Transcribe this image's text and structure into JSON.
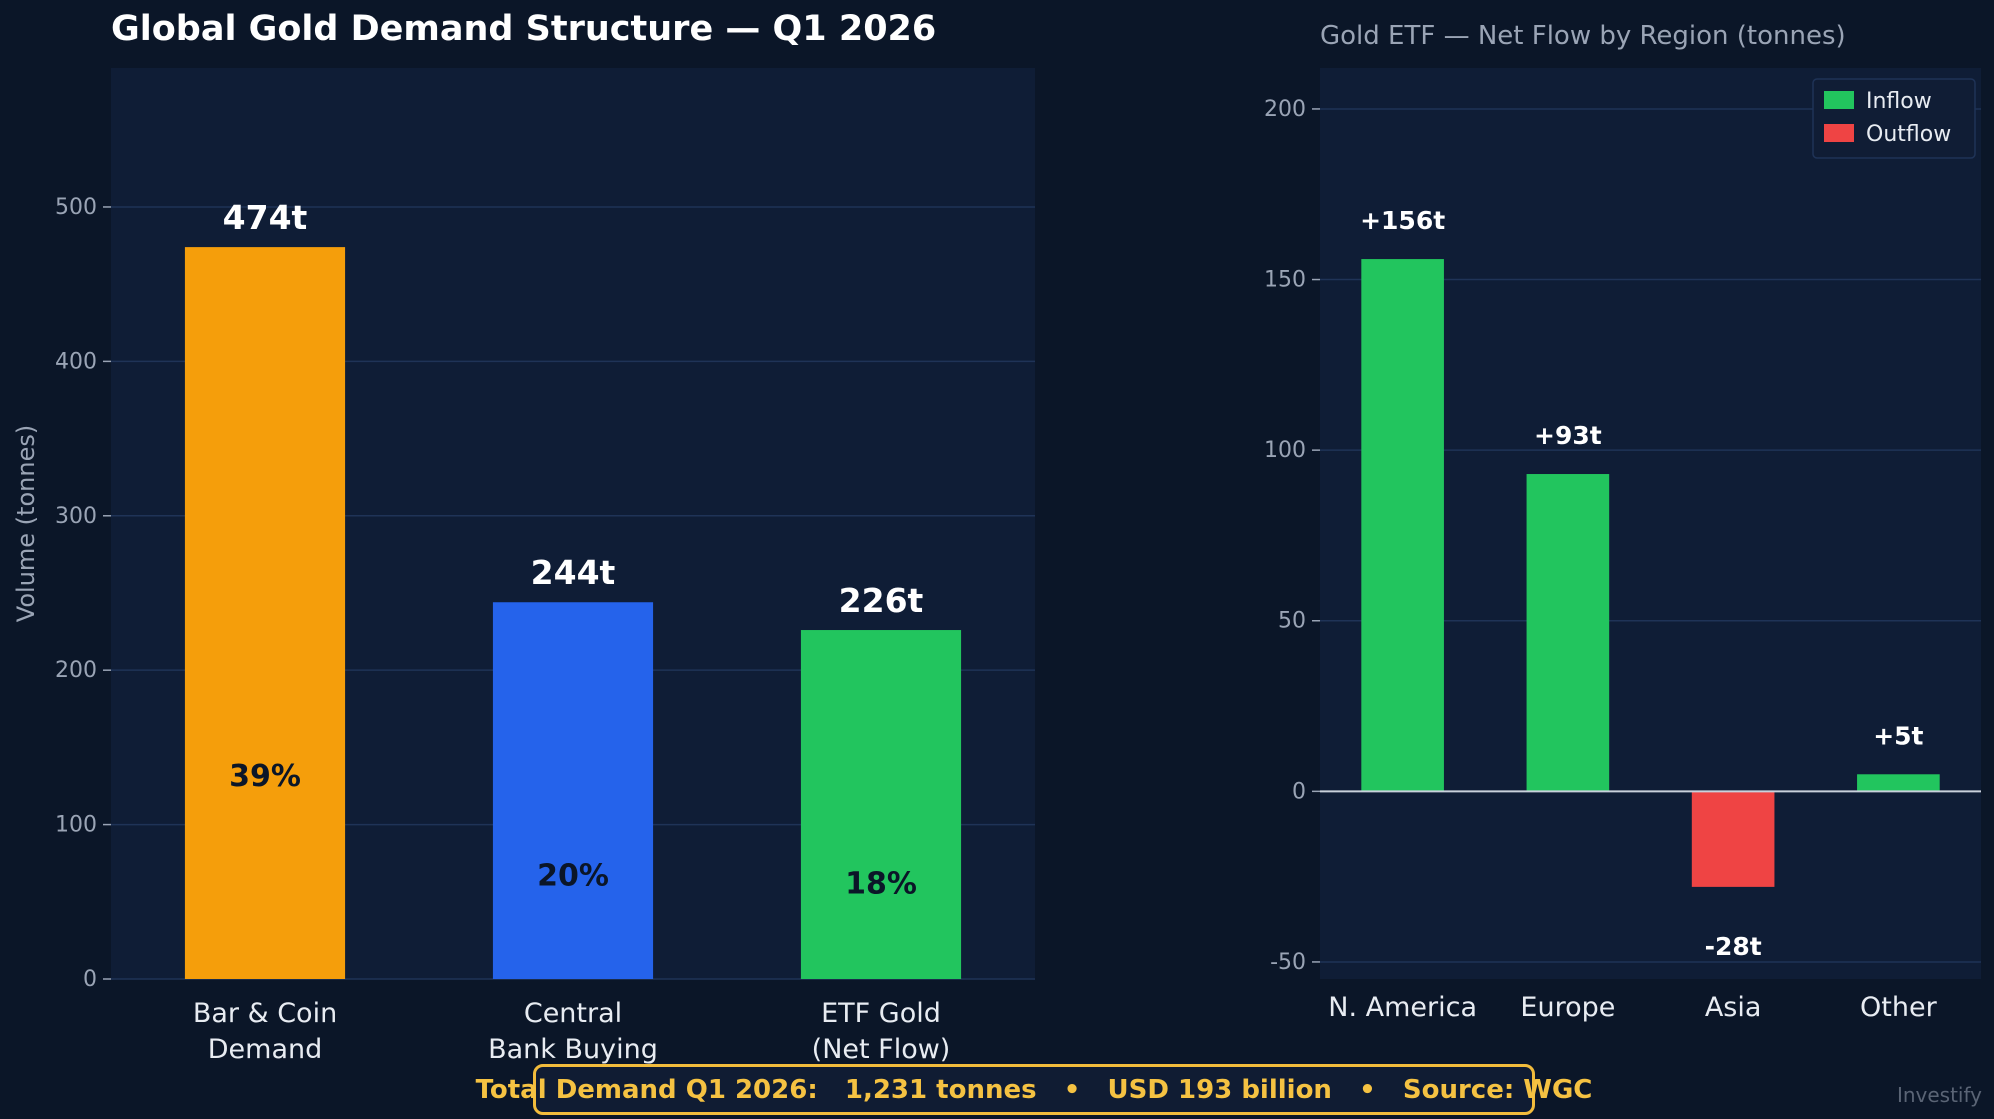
{
  "colors": {
    "background": "#0b1628",
    "panel": "#0f1d36",
    "grid": "#1f3357",
    "tick_text": "#9aa4b5",
    "title_text": "#ffffff",
    "accent_gold": "#f2bc3c"
  },
  "chart_data": [
    {
      "type": "bar",
      "title": "Global Gold Demand Structure — Q1 2026",
      "ylabel": "Volume (tonnes)",
      "xlabel": "",
      "categories": [
        [
          "Bar & Coin",
          "Demand"
        ],
        [
          "Central",
          "Bank Buying"
        ],
        [
          "ETF Gold",
          "(Net Flow)"
        ]
      ],
      "values": [
        474,
        244,
        226
      ],
      "value_labels": [
        "474t",
        "244t",
        "226t"
      ],
      "share_labels": [
        "39%",
        "20%",
        "18%"
      ],
      "colors": [
        "#f59e0b",
        "#2563eb",
        "#22c55e"
      ],
      "ylim": [
        0,
        590
      ],
      "yticks": [
        0,
        100,
        200,
        300,
        400,
        500
      ],
      "grid": true
    },
    {
      "type": "bar",
      "title": "Gold ETF — Net Flow by Region (tonnes)",
      "ylabel": "",
      "xlabel": "",
      "categories": [
        "N. America",
        "Europe",
        "Asia",
        "Other"
      ],
      "values": [
        156,
        93,
        -28,
        5
      ],
      "value_labels": [
        "+156t",
        "+93t",
        "-28t",
        "+5t"
      ],
      "ylim": [
        -55,
        212
      ],
      "yticks": [
        -50,
        0,
        50,
        100,
        150,
        200
      ],
      "grid": true,
      "legend_position": "top-right",
      "legend": [
        {
          "label": "Inflow",
          "color": "#22c55e"
        },
        {
          "label": "Outflow",
          "color": "#ef4444"
        }
      ]
    }
  ],
  "footer": {
    "text": "Total Demand Q1 2026:   1,231 tonnes   •   USD 193 billion   •   Source: WGC"
  },
  "watermark": "Investify"
}
